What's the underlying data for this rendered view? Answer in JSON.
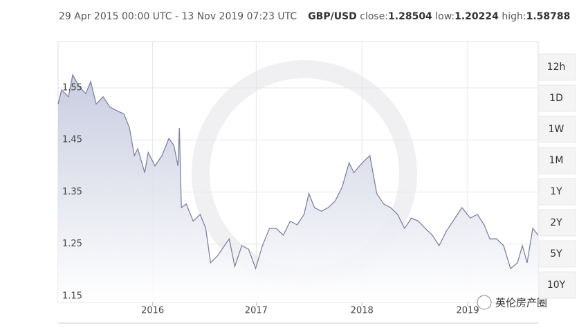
{
  "header": {
    "range": "29 Apr 2015 00:00 UTC - 13 Nov 2019 07:23 UTC",
    "pair": "GBP/USD",
    "stats": [
      {
        "label": "close:",
        "value": 1.28504
      },
      {
        "label": "low:",
        "value": 1.20224
      },
      {
        "label": "high:",
        "value": 1.58788
      }
    ]
  },
  "chart_data": {
    "type": "area",
    "color": "#7d82a3",
    "x": [
      2015.326,
      2015.359,
      2015.424,
      2015.464,
      2015.523,
      2015.588,
      2015.634,
      2015.686,
      2015.752,
      2015.817,
      2015.883,
      2015.949,
      2016.001,
      2016.047,
      2016.08,
      2016.145,
      2016.178,
      2016.243,
      2016.309,
      2016.374,
      2016.42,
      2016.46,
      2016.473,
      2016.492,
      2016.538,
      2016.604,
      2016.669,
      2016.722,
      2016.768,
      2016.833,
      2016.899,
      2016.945,
      2016.997,
      2017.063,
      2017.128,
      2017.194,
      2017.259,
      2017.325,
      2017.39,
      2017.456,
      2017.521,
      2017.587,
      2017.652,
      2017.698,
      2017.751,
      2017.816,
      2017.882,
      2017.947,
      2018.013,
      2018.078,
      2018.124,
      2018.177,
      2018.222,
      2018.275,
      2018.34,
      2018.406,
      2018.471,
      2018.537,
      2018.603,
      2018.668,
      2018.734,
      2018.799,
      2018.865,
      2018.93,
      2018.996,
      2019.061,
      2019.146,
      2019.225,
      2019.291,
      2019.356,
      2019.409,
      2019.474,
      2019.54,
      2019.605,
      2019.671,
      2019.717,
      2019.762,
      2019.815,
      2019.867
    ],
    "values": [
      1.519,
      1.546,
      1.533,
      1.575,
      1.553,
      1.539,
      1.562,
      1.519,
      1.533,
      1.513,
      1.506,
      1.5,
      1.473,
      1.42,
      1.433,
      1.387,
      1.426,
      1.4,
      1.42,
      1.453,
      1.44,
      1.4,
      1.473,
      1.32,
      1.327,
      1.294,
      1.307,
      1.28,
      1.214,
      1.227,
      1.247,
      1.26,
      1.207,
      1.247,
      1.24,
      1.203,
      1.247,
      1.28,
      1.28,
      1.267,
      1.294,
      1.287,
      1.307,
      1.347,
      1.32,
      1.313,
      1.32,
      1.333,
      1.36,
      1.406,
      1.387,
      1.4,
      1.41,
      1.42,
      1.347,
      1.327,
      1.32,
      1.307,
      1.28,
      1.3,
      1.294,
      1.28,
      1.267,
      1.247,
      1.274,
      1.294,
      1.32,
      1.3,
      1.307,
      1.287,
      1.26,
      1.26,
      1.247,
      1.203,
      1.214,
      1.247,
      1.214,
      1.28,
      1.267
    ],
    "xlim": [
      2015.326,
      2019.867
    ],
    "xticks": [
      {
        "value": 2016.22,
        "label": "2016"
      },
      {
        "value": 2017.2,
        "label": "2017"
      },
      {
        "value": 2018.2,
        "label": "2018"
      },
      {
        "value": 2019.2,
        "label": "2019"
      }
    ],
    "ylim": [
      1.138,
      1.639
    ],
    "yticks": [
      1.15,
      1.25,
      1.35,
      1.45,
      1.55
    ],
    "grid": true
  },
  "buttons": [
    "12h",
    "1D",
    "1W",
    "1M",
    "1Y",
    "2Y",
    "5Y",
    "10Y"
  ],
  "watermark": "英伦房产圈"
}
